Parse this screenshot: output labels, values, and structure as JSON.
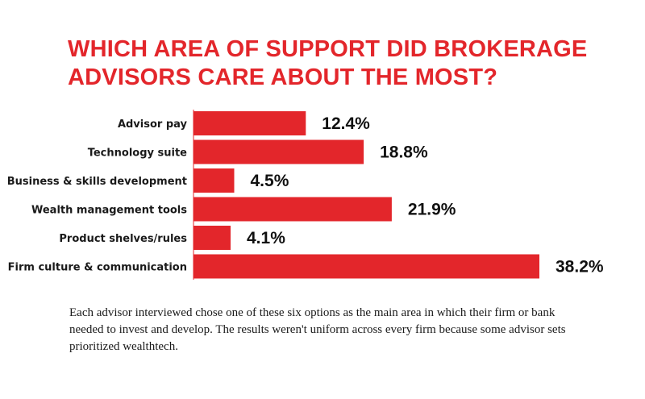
{
  "title": "WHICH AREA OF SUPPORT DID BROKERAGE ADVISORS CARE ABOUT THE MOST?",
  "footnote": "Each advisor interviewed chose one of these six options as the main area in which their firm or bank needed to invest and develop. The results weren't uniform across every firm because some advisor sets prioritized wealthtech.",
  "colors": {
    "bar": "#e3262b",
    "title": "#e3262b"
  },
  "chart_data": {
    "type": "bar",
    "orientation": "horizontal",
    "title": "WHICH AREA OF SUPPORT DID BROKERAGE ADVISORS CARE ABOUT THE MOST?",
    "categories": [
      "Advisor pay",
      "Technology suite",
      "Business & skills development",
      "Wealth management tools",
      "Product shelves/rules",
      "Firm culture & communication"
    ],
    "values": [
      12.4,
      18.8,
      4.5,
      21.9,
      4.1,
      38.2
    ],
    "value_labels": [
      "12.4%",
      "18.8%",
      "4.5%",
      "21.9%",
      "4.1%",
      "38.2%"
    ],
    "xlim": [
      0,
      38.2
    ],
    "grid": false,
    "legend": "none"
  }
}
